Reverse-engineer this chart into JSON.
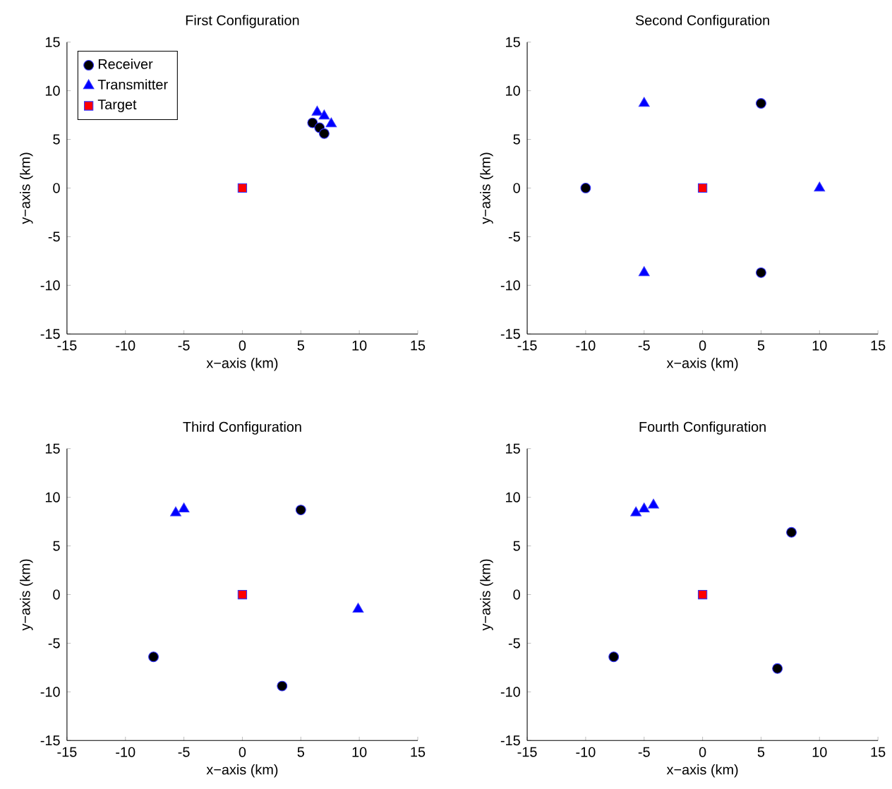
{
  "chart_data": [
    {
      "type": "scatter",
      "title": "First Configuration",
      "xlabel": "x−axis (km)",
      "ylabel": "y−axis (km)",
      "xlim": [
        -15,
        15
      ],
      "ylim": [
        -15,
        15
      ],
      "xticks": [
        -15,
        -10,
        -5,
        0,
        5,
        10,
        15
      ],
      "yticks": [
        -15,
        -10,
        -5,
        0,
        5,
        10,
        15
      ],
      "legend": "top left",
      "grid": false,
      "series": [
        {
          "name": "Receiver",
          "color": "#000000",
          "marker": "circle",
          "x": [
            6.0,
            6.6,
            7.0
          ],
          "values": [
            6.7,
            6.2,
            5.6
          ]
        },
        {
          "name": "Transmitter",
          "color": "#0000ff",
          "marker": "triangle",
          "x": [
            6.4,
            7.0,
            7.6
          ],
          "values": [
            7.8,
            7.4,
            6.6
          ]
        },
        {
          "name": "Target",
          "color": "#ff0000",
          "marker": "square",
          "x": [
            0
          ],
          "values": [
            0
          ]
        }
      ]
    },
    {
      "type": "scatter",
      "title": "Second Configuration",
      "xlabel": "x−axis (km)",
      "ylabel": "y−axis (km)",
      "xlim": [
        -15,
        15
      ],
      "ylim": [
        -15,
        15
      ],
      "xticks": [
        -15,
        -10,
        -5,
        0,
        5,
        10,
        15
      ],
      "yticks": [
        -15,
        -10,
        -5,
        0,
        5,
        10,
        15
      ],
      "grid": false,
      "series": [
        {
          "color": "#000000",
          "marker": "circle",
          "x": [
            -10,
            5,
            5
          ],
          "values": [
            0,
            8.7,
            -8.7
          ]
        },
        {
          "color": "#0000ff",
          "marker": "triangle",
          "x": [
            -5,
            -5,
            10
          ],
          "values": [
            8.7,
            -8.7,
            0
          ]
        },
        {
          "color": "#ff0000",
          "marker": "square",
          "x": [
            0
          ],
          "values": [
            0
          ]
        }
      ]
    },
    {
      "type": "scatter",
      "title": "Third Configuration",
      "xlabel": "x−axis (km)",
      "ylabel": "y−axis (km)",
      "xlim": [
        -15,
        15
      ],
      "ylim": [
        -15,
        15
      ],
      "xticks": [
        -15,
        -10,
        -5,
        0,
        5,
        10,
        15
      ],
      "yticks": [
        -15,
        -10,
        -5,
        0,
        5,
        10,
        15
      ],
      "grid": false,
      "series": [
        {
          "color": "#000000",
          "marker": "circle",
          "x": [
            5.0,
            -7.6,
            3.4
          ],
          "values": [
            8.7,
            -6.4,
            -9.4
          ]
        },
        {
          "color": "#0000ff",
          "marker": "triangle",
          "x": [
            -5.7,
            -5.0,
            9.9
          ],
          "values": [
            8.4,
            8.8,
            -1.5
          ]
        },
        {
          "color": "#ff0000",
          "marker": "square",
          "x": [
            0
          ],
          "values": [
            0
          ]
        }
      ]
    },
    {
      "type": "scatter",
      "title": "Fourth Configuration",
      "xlabel": "x−axis (km)",
      "ylabel": "y−axis (km)",
      "xlim": [
        -15,
        15
      ],
      "ylim": [
        -15,
        15
      ],
      "xticks": [
        -15,
        -10,
        -5,
        0,
        5,
        10,
        15
      ],
      "yticks": [
        -15,
        -10,
        -5,
        0,
        5,
        10,
        15
      ],
      "grid": false,
      "series": [
        {
          "color": "#000000",
          "marker": "circle",
          "x": [
            7.6,
            -7.6,
            6.4
          ],
          "values": [
            6.4,
            -6.4,
            -7.6
          ]
        },
        {
          "color": "#0000ff",
          "marker": "triangle",
          "x": [
            -5.7,
            -5.0,
            -4.2
          ],
          "values": [
            8.4,
            8.8,
            9.2
          ]
        },
        {
          "color": "#ff0000",
          "marker": "square",
          "x": [
            0
          ],
          "values": [
            0
          ]
        }
      ]
    }
  ]
}
